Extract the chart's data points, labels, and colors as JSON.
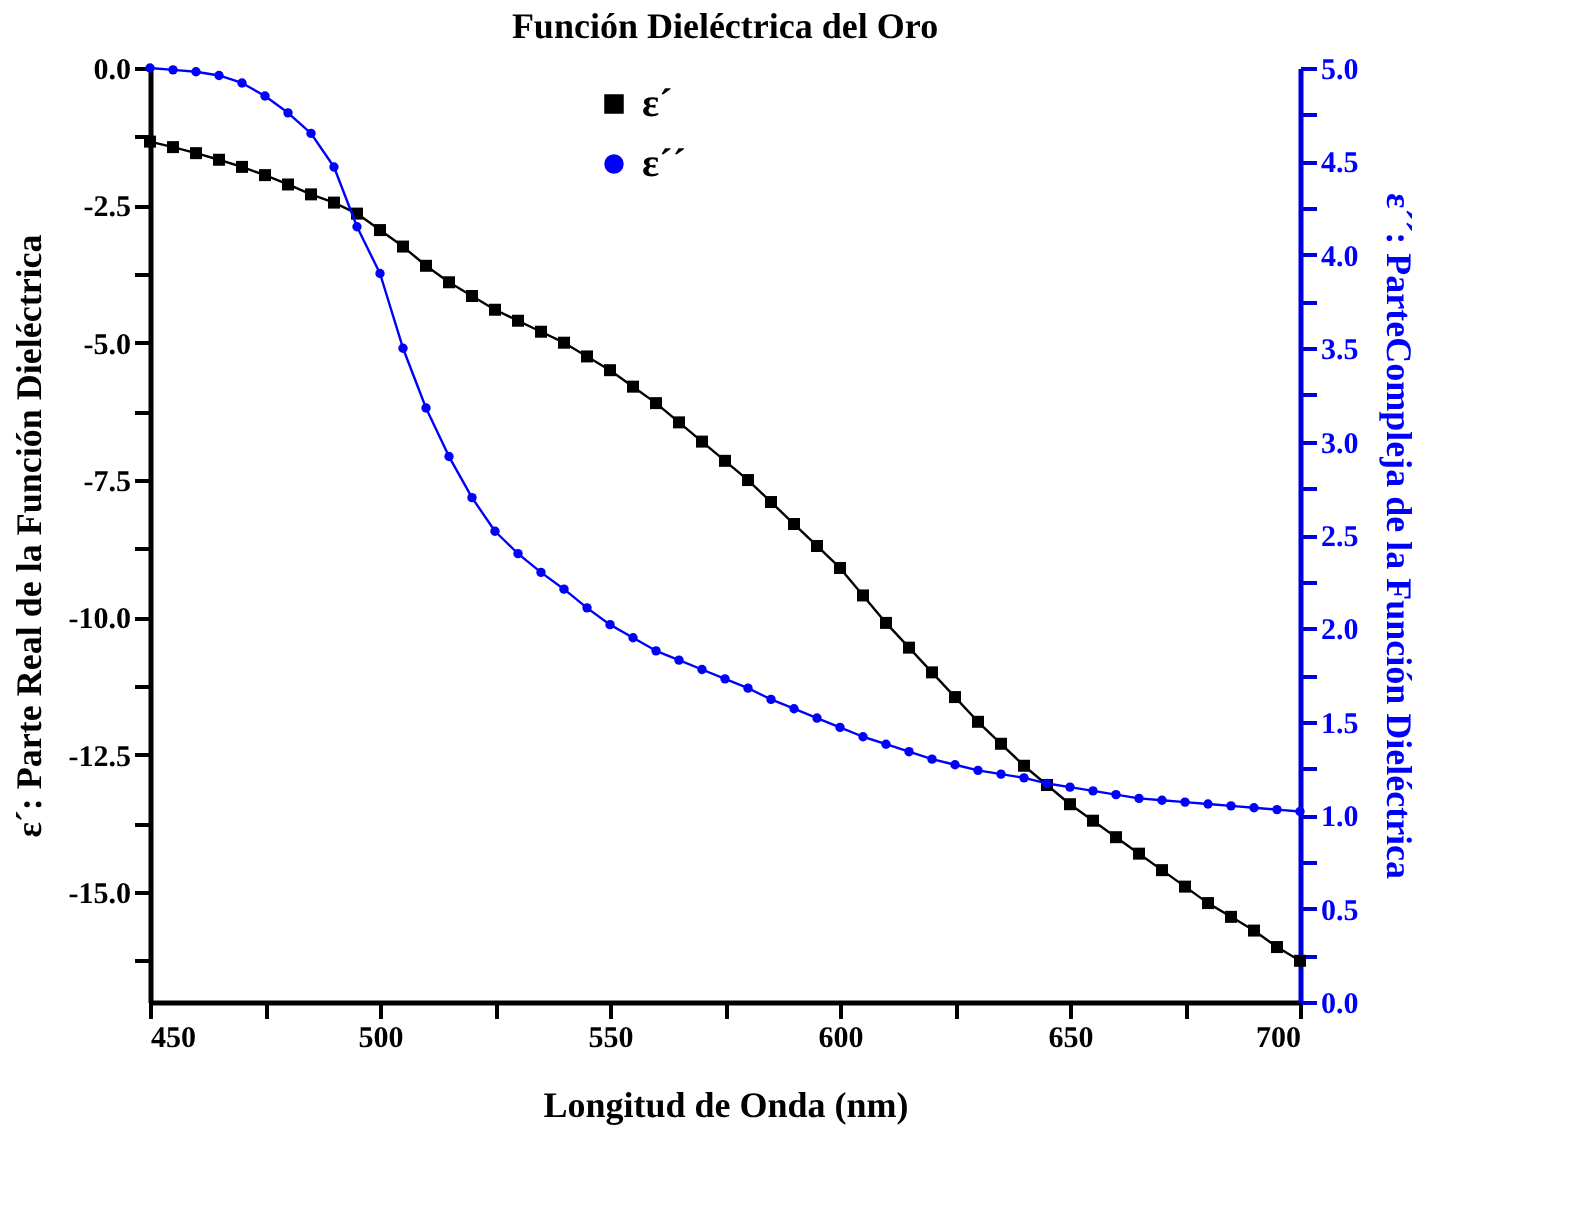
{
  "chart_data": {
    "type": "line",
    "title": "Función Dieléctrica del Oro",
    "xlabel": "Longitud de Onda (nm)",
    "ylabel": "ε´: Parte Real de la Función Dieléctrica",
    "y2label": "ε´´: ParteCompleja de la Función Dieléctrica",
    "x": [
      450,
      455,
      460,
      465,
      470,
      475,
      480,
      485,
      490,
      495,
      500,
      505,
      510,
      515,
      520,
      525,
      530,
      535,
      540,
      545,
      550,
      555,
      560,
      565,
      570,
      575,
      580,
      585,
      590,
      595,
      600,
      605,
      610,
      615,
      620,
      625,
      630,
      635,
      640,
      645,
      650,
      655,
      660,
      665,
      670,
      675,
      680,
      685,
      690,
      695,
      700
    ],
    "series": [
      {
        "name": "ε´",
        "color": "#000000",
        "marker": "square",
        "values": [
          -1.34,
          -1.44,
          -1.55,
          -1.67,
          -1.8,
          -1.95,
          -2.12,
          -2.3,
          -2.45,
          -2.65,
          -2.95,
          -3.25,
          -3.6,
          -3.9,
          -4.15,
          -4.4,
          -4.6,
          -4.8,
          -5.0,
          -5.25,
          -5.5,
          -5.8,
          -6.1,
          -6.45,
          -6.8,
          -7.15,
          -7.5,
          -7.9,
          -8.3,
          -8.7,
          -9.1,
          -9.6,
          -10.1,
          -10.55,
          -11.0,
          -11.45,
          -11.9,
          -12.3,
          -12.7,
          -13.05,
          -13.4,
          -13.7,
          -14.0,
          -14.3,
          -14.6,
          -14.9,
          -15.2,
          -15.45,
          -15.7,
          -16.0,
          -16.25
        ]
      },
      {
        "name": "ε´´",
        "color": "#0000ff",
        "marker": "circle",
        "axis": "y2",
        "values": [
          5.0,
          4.99,
          4.98,
          4.96,
          4.92,
          4.85,
          4.76,
          4.65,
          4.47,
          4.15,
          3.9,
          3.5,
          3.18,
          2.92,
          2.7,
          2.52,
          2.4,
          2.3,
          2.21,
          2.11,
          2.02,
          1.95,
          1.88,
          1.83,
          1.78,
          1.73,
          1.68,
          1.62,
          1.57,
          1.52,
          1.47,
          1.42,
          1.38,
          1.34,
          1.3,
          1.27,
          1.24,
          1.22,
          1.2,
          1.17,
          1.15,
          1.13,
          1.11,
          1.09,
          1.08,
          1.07,
          1.06,
          1.05,
          1.04,
          1.03,
          1.02
        ]
      }
    ],
    "xlim": [
      450,
      700
    ],
    "xticks": [
      450,
      {
        "value": 475,
        "label": null
      },
      500,
      {
        "value": 525,
        "label": null
      },
      550,
      {
        "value": 575,
        "label": null
      },
      600,
      {
        "value": 625,
        "label": null
      },
      650,
      {
        "value": 675,
        "label": null
      },
      700
    ],
    "ylim": [
      -17,
      0
    ],
    "yticks": [
      {
        "value": 0,
        "label": "0.0"
      },
      {
        "value": -1.25,
        "label": null
      },
      {
        "value": -2.5,
        "label": "-2.5"
      },
      {
        "value": -3.75,
        "label": null
      },
      {
        "value": -5,
        "label": "-5.0"
      },
      {
        "value": -6.25,
        "label": null
      },
      {
        "value": -7.5,
        "label": "-7.5"
      },
      {
        "value": -8.75,
        "label": null
      },
      {
        "value": -10,
        "label": "-10.0"
      },
      {
        "value": -11.25,
        "label": null
      },
      {
        "value": -12.5,
        "label": "-12.5"
      },
      {
        "value": -13.75,
        "label": null
      },
      {
        "value": -15,
        "label": "-15.0"
      },
      {
        "value": -16.25,
        "label": null
      }
    ],
    "y2lim": [
      0,
      5
    ],
    "y2ticks": [
      {
        "value": 0,
        "label": "0.0"
      },
      {
        "value": 0.25,
        "label": null
      },
      {
        "value": 0.5,
        "label": "0.5"
      },
      {
        "value": 0.75,
        "label": null
      },
      {
        "value": 1,
        "label": "1.0"
      },
      {
        "value": 1.25,
        "label": null
      },
      {
        "value": 1.5,
        "label": "1.5"
      },
      {
        "value": 1.75,
        "label": null
      },
      {
        "value": 2,
        "label": "2.0"
      },
      {
        "value": 2.25,
        "label": null
      },
      {
        "value": 2.5,
        "label": "2.5"
      },
      {
        "value": 2.75,
        "label": null
      },
      {
        "value": 3,
        "label": "3.0"
      },
      {
        "value": 3.25,
        "label": null
      },
      {
        "value": 3.5,
        "label": "3.5"
      },
      {
        "value": 3.75,
        "label": null
      },
      {
        "value": 4,
        "label": "4.0"
      },
      {
        "value": 4.25,
        "label": null
      },
      {
        "value": 4.5,
        "label": "4.5"
      },
      {
        "value": 4.75,
        "label": null
      },
      {
        "value": 5,
        "label": "5.0"
      }
    ],
    "grid": false,
    "legend": "top",
    "line_style": "solid"
  }
}
